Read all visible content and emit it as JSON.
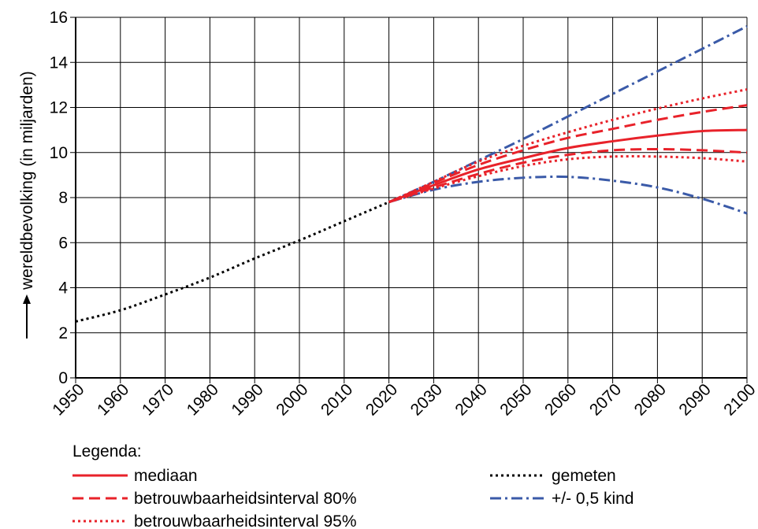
{
  "chart_data": {
    "type": "line",
    "xlabel": "",
    "ylabel": "wereldbevolking (in miljarden)",
    "xlim": [
      1950,
      2100
    ],
    "ylim": [
      0,
      16
    ],
    "x_ticks": [
      "1950",
      "1960",
      "1970",
      "1980",
      "1990",
      "2000",
      "2010",
      "2020",
      "2030",
      "2040",
      "2050",
      "2060",
      "2070",
      "2080",
      "2090",
      "2100"
    ],
    "y_ticks": [
      "0",
      "2",
      "4",
      "6",
      "8",
      "10",
      "12",
      "14",
      "16"
    ],
    "grid": true,
    "legend": {
      "title": "Legenda:",
      "placement": "bottom",
      "entries": [
        {
          "label": "mediaan",
          "style": "solid",
          "color": "#e8222a"
        },
        {
          "label": "betrouwbaarheidsinterval 80%",
          "style": "dashed",
          "color": "#e8222a"
        },
        {
          "label": "betrouwbaarheidsinterval 95%",
          "style": "dotted",
          "color": "#e8222a"
        },
        {
          "label": "gemeten",
          "style": "dotted",
          "color": "#000000"
        },
        {
          "label": "+/- 0,5 kind",
          "style": "dashdot",
          "color": "#3a5aa8"
        }
      ]
    },
    "series": [
      {
        "name": "gemeten",
        "style": "dotted",
        "color": "#000000",
        "x": [
          1950,
          1960,
          1970,
          1980,
          1990,
          2000,
          2010,
          2020
        ],
        "y": [
          2.5,
          3.0,
          3.7,
          4.45,
          5.3,
          6.1,
          6.95,
          7.8
        ]
      },
      {
        "name": "mediaan",
        "style": "solid",
        "color": "#e8222a",
        "x": [
          2020,
          2030,
          2040,
          2050,
          2060,
          2070,
          2080,
          2090,
          2100
        ],
        "y": [
          7.8,
          8.55,
          9.25,
          9.75,
          10.2,
          10.5,
          10.75,
          10.95,
          11.0
        ]
      },
      {
        "name": "betrouwbaarheidsinterval 80% (boven)",
        "style": "dashed",
        "color": "#e8222a",
        "x": [
          2020,
          2030,
          2040,
          2050,
          2060,
          2070,
          2080,
          2090,
          2100
        ],
        "y": [
          7.8,
          8.65,
          9.45,
          10.1,
          10.65,
          11.05,
          11.45,
          11.8,
          12.1
        ]
      },
      {
        "name": "betrouwbaarheidsinterval 80% (onder)",
        "style": "dashed",
        "color": "#e8222a",
        "x": [
          2020,
          2030,
          2040,
          2050,
          2060,
          2070,
          2080,
          2090,
          2100
        ],
        "y": [
          7.8,
          8.45,
          9.05,
          9.55,
          9.9,
          10.1,
          10.15,
          10.1,
          10.0
        ]
      },
      {
        "name": "betrouwbaarheidsinterval 95% (boven)",
        "style": "dotted",
        "color": "#e8222a",
        "x": [
          2020,
          2030,
          2040,
          2050,
          2060,
          2070,
          2080,
          2090,
          2100
        ],
        "y": [
          7.8,
          8.7,
          9.6,
          10.3,
          10.9,
          11.45,
          11.95,
          12.4,
          12.8
        ]
      },
      {
        "name": "betrouwbaarheidsinterval 95% (onder)",
        "style": "dotted",
        "color": "#e8222a",
        "x": [
          2020,
          2030,
          2040,
          2050,
          2060,
          2070,
          2080,
          2090,
          2100
        ],
        "y": [
          7.8,
          8.4,
          8.95,
          9.4,
          9.7,
          9.82,
          9.82,
          9.75,
          9.6
        ]
      },
      {
        "name": "+/- 0,5 kind (boven)",
        "style": "dashdot",
        "color": "#3a5aa8",
        "x": [
          2020,
          2030,
          2040,
          2050,
          2060,
          2070,
          2080,
          2090,
          2100
        ],
        "y": [
          7.8,
          8.7,
          9.65,
          10.6,
          11.6,
          12.6,
          13.6,
          14.6,
          15.6
        ]
      },
      {
        "name": "+/- 0,5 kind (onder)",
        "style": "dashdot",
        "color": "#3a5aa8",
        "x": [
          2020,
          2030,
          2040,
          2050,
          2060,
          2070,
          2080,
          2090,
          2100
        ],
        "y": [
          7.8,
          8.35,
          8.7,
          8.88,
          8.92,
          8.75,
          8.45,
          7.95,
          7.3
        ]
      }
    ]
  }
}
